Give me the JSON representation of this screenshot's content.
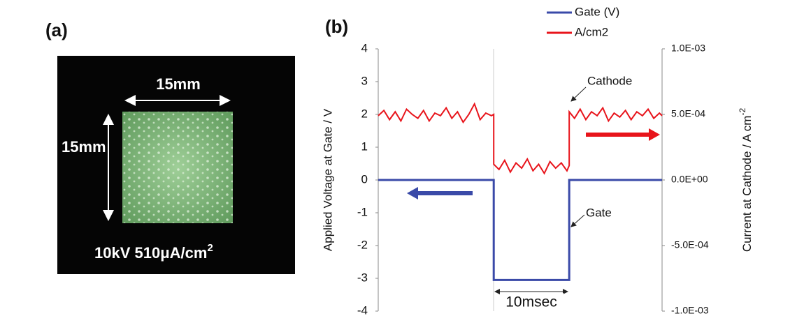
{
  "panel_a": {
    "label": "(a)",
    "width_label": "15mm",
    "height_label": "15mm",
    "caption": "10kV 510μA/cm",
    "caption_sup": "2"
  },
  "chart_data": {
    "type": "line",
    "panel_label": "(b)",
    "ylabel": "Applied Voltage at Gate / V",
    "y2label": "Current at Cathode / A cm",
    "y2label_sup": "-2",
    "xlim": [
      0,
      37.6
    ],
    "ylim": [
      -4,
      4
    ],
    "yticks": [
      -4,
      -3,
      -2,
      -1,
      0,
      1,
      2,
      3,
      4
    ],
    "y2lim": [
      -0.001,
      0.001
    ],
    "y2ticks": [
      {
        "value": -0.001,
        "label": "-1.0E-03"
      },
      {
        "value": -0.0005,
        "label": "-5.0E-04"
      },
      {
        "value": 0,
        "label": "0.0E+00"
      },
      {
        "value": 0.0005,
        "label": "5.0E-04"
      },
      {
        "value": 0.001,
        "label": "1.0E-03"
      }
    ],
    "series": [
      {
        "name": "Gate (V)",
        "color": "#3a4aa8",
        "x": [
          0,
          15.3,
          15.3,
          25.3,
          25.3,
          37.6
        ],
        "values": [
          0,
          0,
          -3.05,
          -3.05,
          0,
          0
        ]
      },
      {
        "name": "A/cm2",
        "color": "#e8141b",
        "axis": "y2",
        "x": [
          0,
          0.75,
          1.5,
          2.25,
          3,
          3.75,
          4.5,
          5.25,
          6,
          6.75,
          7.5,
          8.25,
          9,
          9.75,
          10.5,
          11.25,
          12,
          12.75,
          13.5,
          14.25,
          15,
          15.3,
          15.3,
          16,
          16.75,
          17.5,
          18.25,
          19,
          19.75,
          20.5,
          21.25,
          22,
          22.75,
          23.5,
          24.25,
          25,
          25.3,
          25.3,
          26,
          26.75,
          27.5,
          28.25,
          29,
          29.75,
          30.5,
          31.25,
          32,
          32.75,
          33.5,
          34.25,
          35,
          35.75,
          36.5,
          37.25,
          37.6
        ],
        "values": [
          0.00049,
          0.00053,
          0.00046,
          0.00052,
          0.00045,
          0.00054,
          0.0005,
          0.00047,
          0.00053,
          0.00045,
          0.00051,
          0.00049,
          0.00055,
          0.00047,
          0.00052,
          0.00044,
          0.0005,
          0.00058,
          0.00046,
          0.00051,
          0.00049,
          0.0005,
          0.00012,
          8e-05,
          0.00015,
          6e-05,
          0.00013,
          9e-05,
          0.00016,
          7e-05,
          0.00012,
          5e-05,
          0.00014,
          9e-05,
          0.00013,
          7e-05,
          0.00011,
          0.00052,
          0.00047,
          0.00054,
          0.00046,
          0.00052,
          0.00049,
          0.00055,
          0.00045,
          0.00051,
          0.00048,
          0.00053,
          0.00046,
          0.00052,
          0.00049,
          0.00054,
          0.00047,
          0.00051,
          0.00049
        ]
      }
    ],
    "legend": "top",
    "annotations": [
      "Cathode",
      "Gate",
      "10msec"
    ]
  }
}
